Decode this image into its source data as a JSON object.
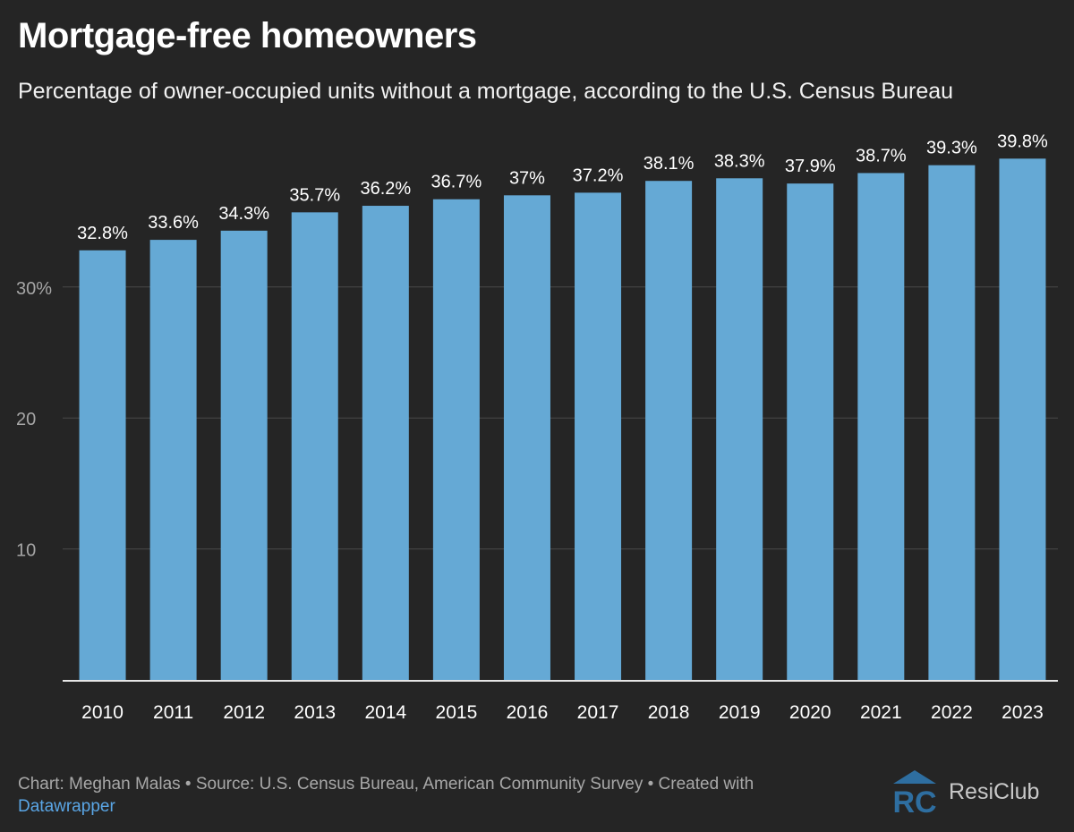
{
  "header": {
    "title": "Mortgage-free homeowners",
    "subtitle": "Percentage of owner-occupied units without a mortgage, according to the U.S. Census Bureau"
  },
  "chart_data": {
    "type": "bar",
    "categories": [
      "2010",
      "2011",
      "2012",
      "2013",
      "2014",
      "2015",
      "2016",
      "2017",
      "2018",
      "2019",
      "2020",
      "2021",
      "2022",
      "2023"
    ],
    "values": [
      32.8,
      33.6,
      34.3,
      35.7,
      36.2,
      36.7,
      37,
      37.2,
      38.1,
      38.3,
      37.9,
      38.7,
      39.3,
      39.8
    ],
    "data_labels": [
      "32.8%",
      "33.6%",
      "34.3%",
      "35.7%",
      "36.2%",
      "36.7%",
      "37%",
      "37.2%",
      "38.1%",
      "38.3%",
      "37.9%",
      "38.7%",
      "39.3%",
      "39.8%"
    ],
    "yticks": [
      10,
      20,
      30
    ],
    "ytick_labels": [
      "10",
      "20",
      "30%"
    ],
    "ylim": [
      0,
      41
    ],
    "grid": true,
    "colors": {
      "bar": "#65a9d5",
      "grid": "#4a4a4a",
      "axis": "#e6e6e6",
      "tick_label": "#a6a6a6",
      "data_label": "#ffffff"
    }
  },
  "footer": {
    "credit": "Chart: Meghan Malas • Source: U.S. Census Bureau, American Community Survey • Created with",
    "tool": "Datawrapper"
  },
  "brand": {
    "name": "ResiClub",
    "icon": "resiclub-logo-icon",
    "color": "#2e6ea0"
  }
}
